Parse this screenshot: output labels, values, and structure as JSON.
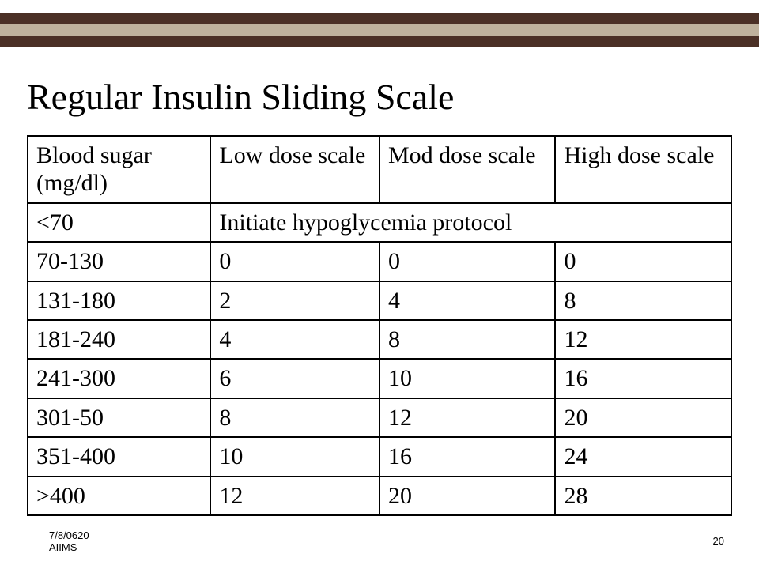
{
  "banner": {
    "dark_color": "#4b3026",
    "light_color": "#bfb29d"
  },
  "title": "Regular Insulin Sliding Scale",
  "table": {
    "headers": [
      "Blood sugar (mg/dl)",
      "Low dose scale",
      "Mod dose scale",
      "High dose scale"
    ],
    "protocol_row": {
      "label": "<70",
      "text": "Initiate hypoglycemia protocol"
    },
    "rows": [
      {
        "range": "70-130",
        "low": "0",
        "mod": "0",
        "high": "0"
      },
      {
        "range": "131-180",
        "low": "2",
        "mod": "4",
        "high": "8"
      },
      {
        "range": "181-240",
        "low": "4",
        "mod": "8",
        "high": "12"
      },
      {
        "range": "241-300",
        "low": "6",
        "mod": "10",
        "high": "16"
      },
      {
        "range": "301-50",
        "low": "8",
        "mod": "12",
        "high": "20"
      },
      {
        "range": "351-400",
        "low": "10",
        "mod": "16",
        "high": "24"
      },
      {
        "range": ">400",
        "low": "12",
        "mod": "20",
        "high": "28"
      }
    ]
  },
  "footer": {
    "date_line1": "7/8/0620",
    "date_line2": "AIIMS",
    "page": "20"
  }
}
